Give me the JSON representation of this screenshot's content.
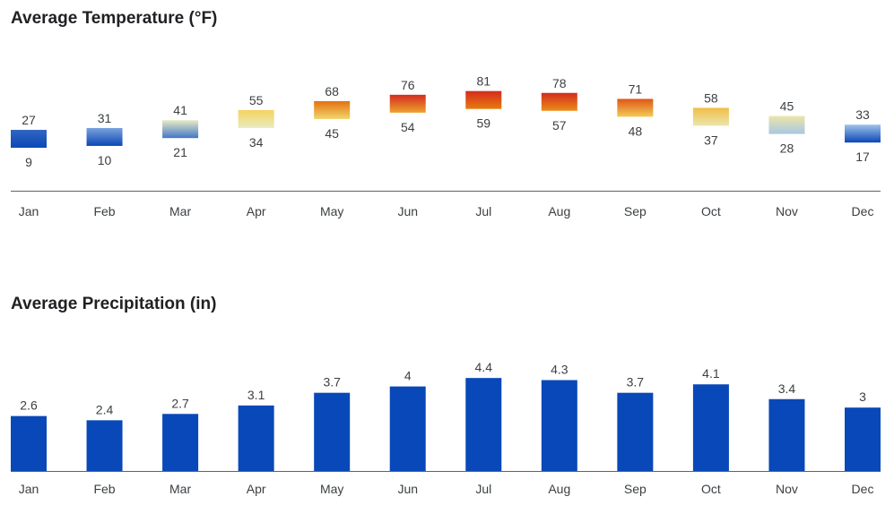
{
  "chart_data": [
    {
      "type": "bar",
      "subtype": "floating-range",
      "title": "Average Temperature (°F)",
      "categories": [
        "Jan",
        "Feb",
        "Mar",
        "Apr",
        "May",
        "Jun",
        "Jul",
        "Aug",
        "Sep",
        "Oct",
        "Nov",
        "Dec"
      ],
      "series": [
        {
          "name": "",
          "values": [
            27,
            31,
            41,
            55,
            68,
            76,
            81,
            78,
            71,
            58,
            45,
            33
          ]
        },
        {
          "name": "",
          "values": [
            9,
            10,
            21,
            34,
            45,
            54,
            59,
            57,
            48,
            37,
            28,
            17
          ]
        }
      ],
      "color_scale": {
        "cold": "#0b47b5",
        "cool": "#9fc2ea",
        "mild": "#e8ecc4",
        "warm": "#f4d35e",
        "hot": "#e8820c",
        "very_hot": "#d42a1f"
      },
      "grid": false,
      "legend": "none"
    },
    {
      "type": "bar",
      "title": "Average Precipitation (in)",
      "categories": [
        "Jan",
        "Feb",
        "Mar",
        "Apr",
        "May",
        "Jun",
        "Jul",
        "Aug",
        "Sep",
        "Oct",
        "Nov",
        "Dec"
      ],
      "values": [
        2.6,
        2.4,
        2.7,
        3.1,
        3.7,
        4,
        4.4,
        4.3,
        3.7,
        4.1,
        3.4,
        3
      ],
      "bar_color": "#0948b8",
      "grid": false,
      "legend": "none"
    }
  ],
  "axis_color": "#5f6368"
}
